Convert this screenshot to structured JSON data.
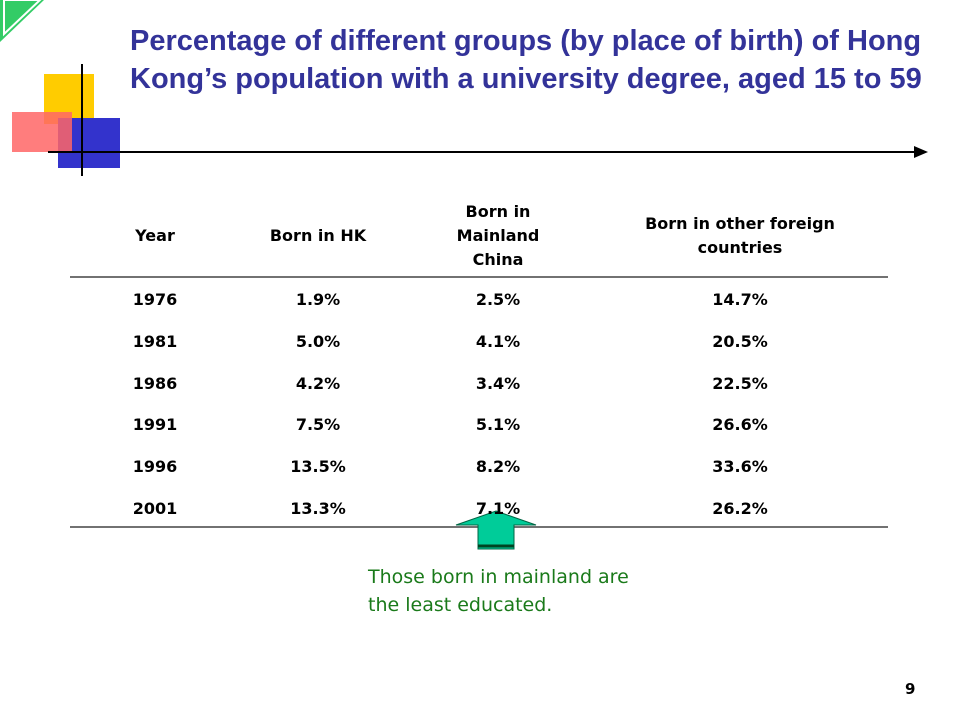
{
  "header": {
    "title": "Percentage of different groups (by place of birth) of Hong Kong’s population with a university degree, aged 15 to 59"
  },
  "table": {
    "columns": [
      "Year",
      "Born in HK",
      "Born in Mainland China",
      "Born in other foreign countries"
    ],
    "rows": [
      [
        "1976",
        "1.9%",
        "2.5%",
        "14.7%"
      ],
      [
        "1981",
        "5.0%",
        "4.1%",
        "20.5%"
      ],
      [
        "1986",
        "4.2%",
        "3.4%",
        "22.5%"
      ],
      [
        "1991",
        "7.5%",
        "5.1%",
        "26.6%"
      ],
      [
        "1996",
        "13.5%",
        "8.2%",
        "33.6%"
      ],
      [
        "2001",
        "13.3%",
        "7.1%",
        "26.2%"
      ]
    ]
  },
  "annotation": "Those born in mainland are the least educated.",
  "page_number": "9"
}
